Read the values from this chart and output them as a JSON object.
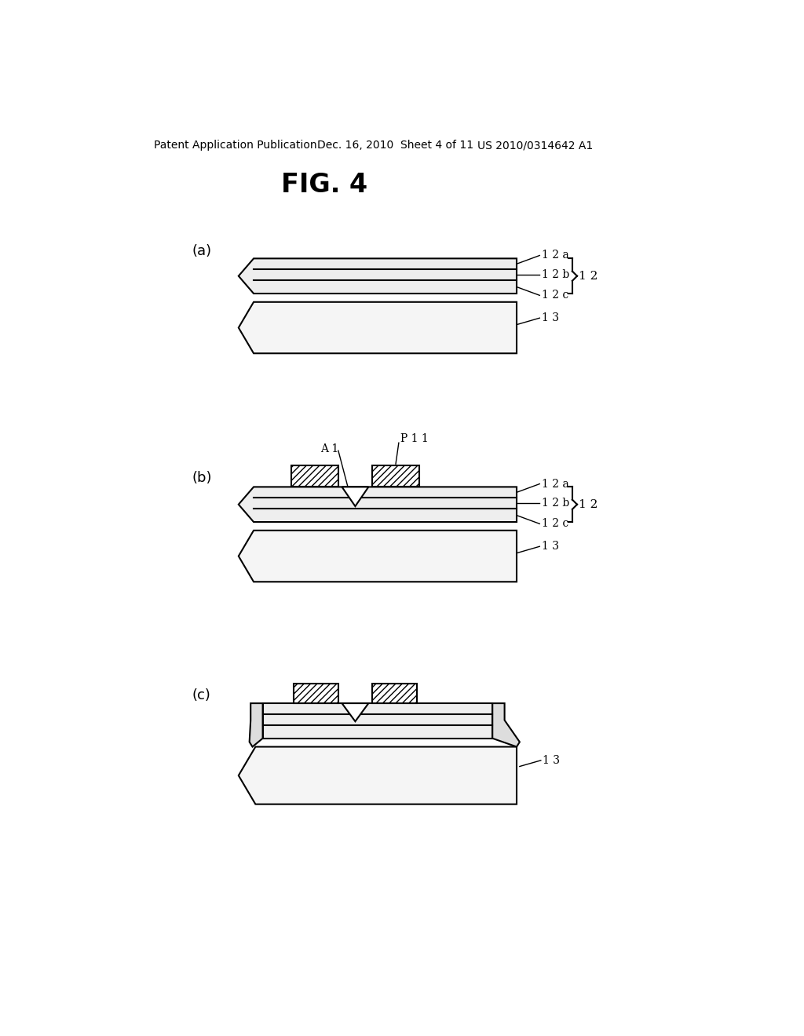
{
  "title": "FIG. 4",
  "header_left": "Patent Application Publication",
  "header_mid": "Dec. 16, 2010  Sheet 4 of 11",
  "header_right": "US 2010/0314642 A1",
  "bg_color": "#ffffff",
  "line_color": "#000000",
  "fig_labels": [
    "(a)",
    "(b)",
    "(c)"
  ],
  "layer_labels": {
    "12a": "1 2 a",
    "12b": "1 2 b",
    "12c": "1 2 c",
    "12": "1 2",
    "13": "1 3"
  }
}
